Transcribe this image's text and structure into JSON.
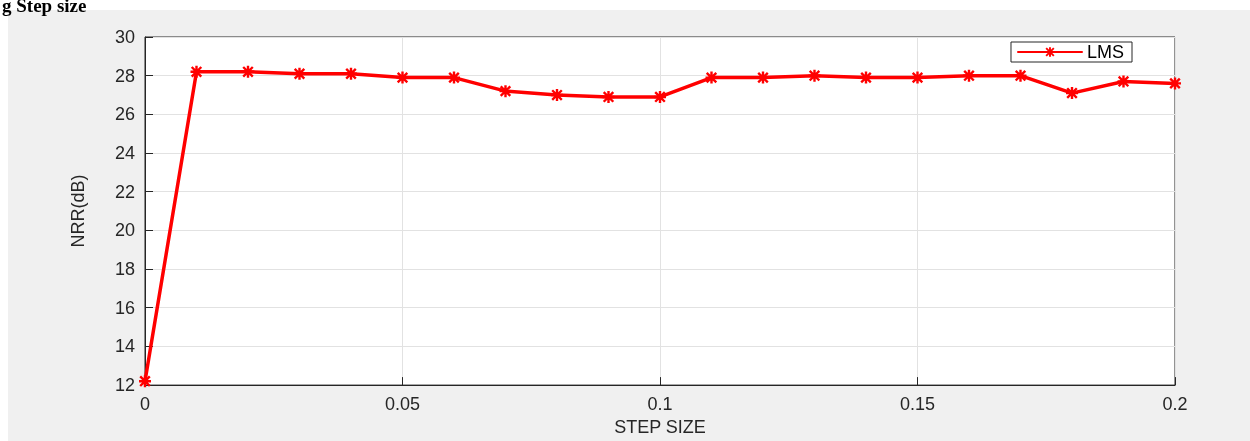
{
  "chart_data": {
    "type": "line",
    "title": "g Step size",
    "xlabel": "STEP SIZE",
    "ylabel": "NRR(dB)",
    "x": [
      0,
      0.01,
      0.02,
      0.03,
      0.04,
      0.05,
      0.06,
      0.07,
      0.08,
      0.09,
      0.1,
      0.11,
      0.12,
      0.13,
      0.14,
      0.15,
      0.16,
      0.17,
      0.18,
      0.19,
      0.2
    ],
    "series": [
      {
        "name": "LMS",
        "color": "#ff0000",
        "values": [
          12.2,
          28.2,
          28.2,
          28.1,
          28.1,
          27.9,
          27.9,
          27.2,
          27.0,
          26.9,
          26.9,
          27.9,
          27.9,
          28.0,
          27.9,
          27.9,
          28.0,
          28.0,
          27.1,
          27.7,
          27.6
        ]
      }
    ],
    "xlim": [
      0,
      0.2
    ],
    "ylim": [
      12,
      30
    ],
    "xticks": [
      0,
      0.05,
      0.1,
      0.15,
      0.2
    ],
    "yticks": [
      12,
      14,
      16,
      18,
      20,
      22,
      24,
      26,
      28,
      30
    ],
    "grid": true,
    "legend": "top right",
    "marker": "star",
    "line_style": "solid"
  }
}
